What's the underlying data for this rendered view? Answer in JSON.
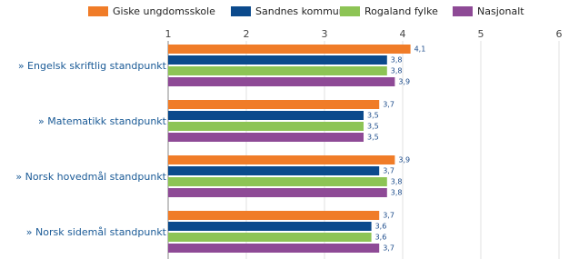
{
  "chart_data": {
    "type": "hbar",
    "categories": [
      "» Engelsk skriftlig standpunkt",
      "» Matematikk standpunkt",
      "» Norsk hovedmål standpunkt",
      "» Norsk sidemål standpunkt"
    ],
    "series": [
      {
        "name": "Giske ungdomsskole",
        "color": "#f07c28",
        "values": [
          4.1,
          3.7,
          3.9,
          3.7
        ],
        "value_labels": [
          "4,1",
          "3,7",
          "3,9",
          "3,7"
        ]
      },
      {
        "name": "Sandnes kommune",
        "color": "#0b4a8c",
        "values": [
          3.8,
          3.5,
          3.7,
          3.6
        ],
        "value_labels": [
          "3,8",
          "3,5",
          "3,7",
          "3,6"
        ]
      },
      {
        "name": "Rogaland fylke",
        "color": "#8dc455",
        "values": [
          3.8,
          3.5,
          3.8,
          3.6
        ],
        "value_labels": [
          "3,8",
          "3,5",
          "3,8",
          "3,6"
        ]
      },
      {
        "name": "Nasjonalt",
        "color": "#8e4a96",
        "values": [
          3.9,
          3.5,
          3.8,
          3.7
        ],
        "value_labels": [
          "3,9",
          "3,5",
          "3,8",
          "3,7"
        ]
      }
    ],
    "xlim": [
      1,
      6
    ],
    "xticks": [
      1,
      2,
      3,
      4,
      5,
      6
    ],
    "grid": true
  }
}
